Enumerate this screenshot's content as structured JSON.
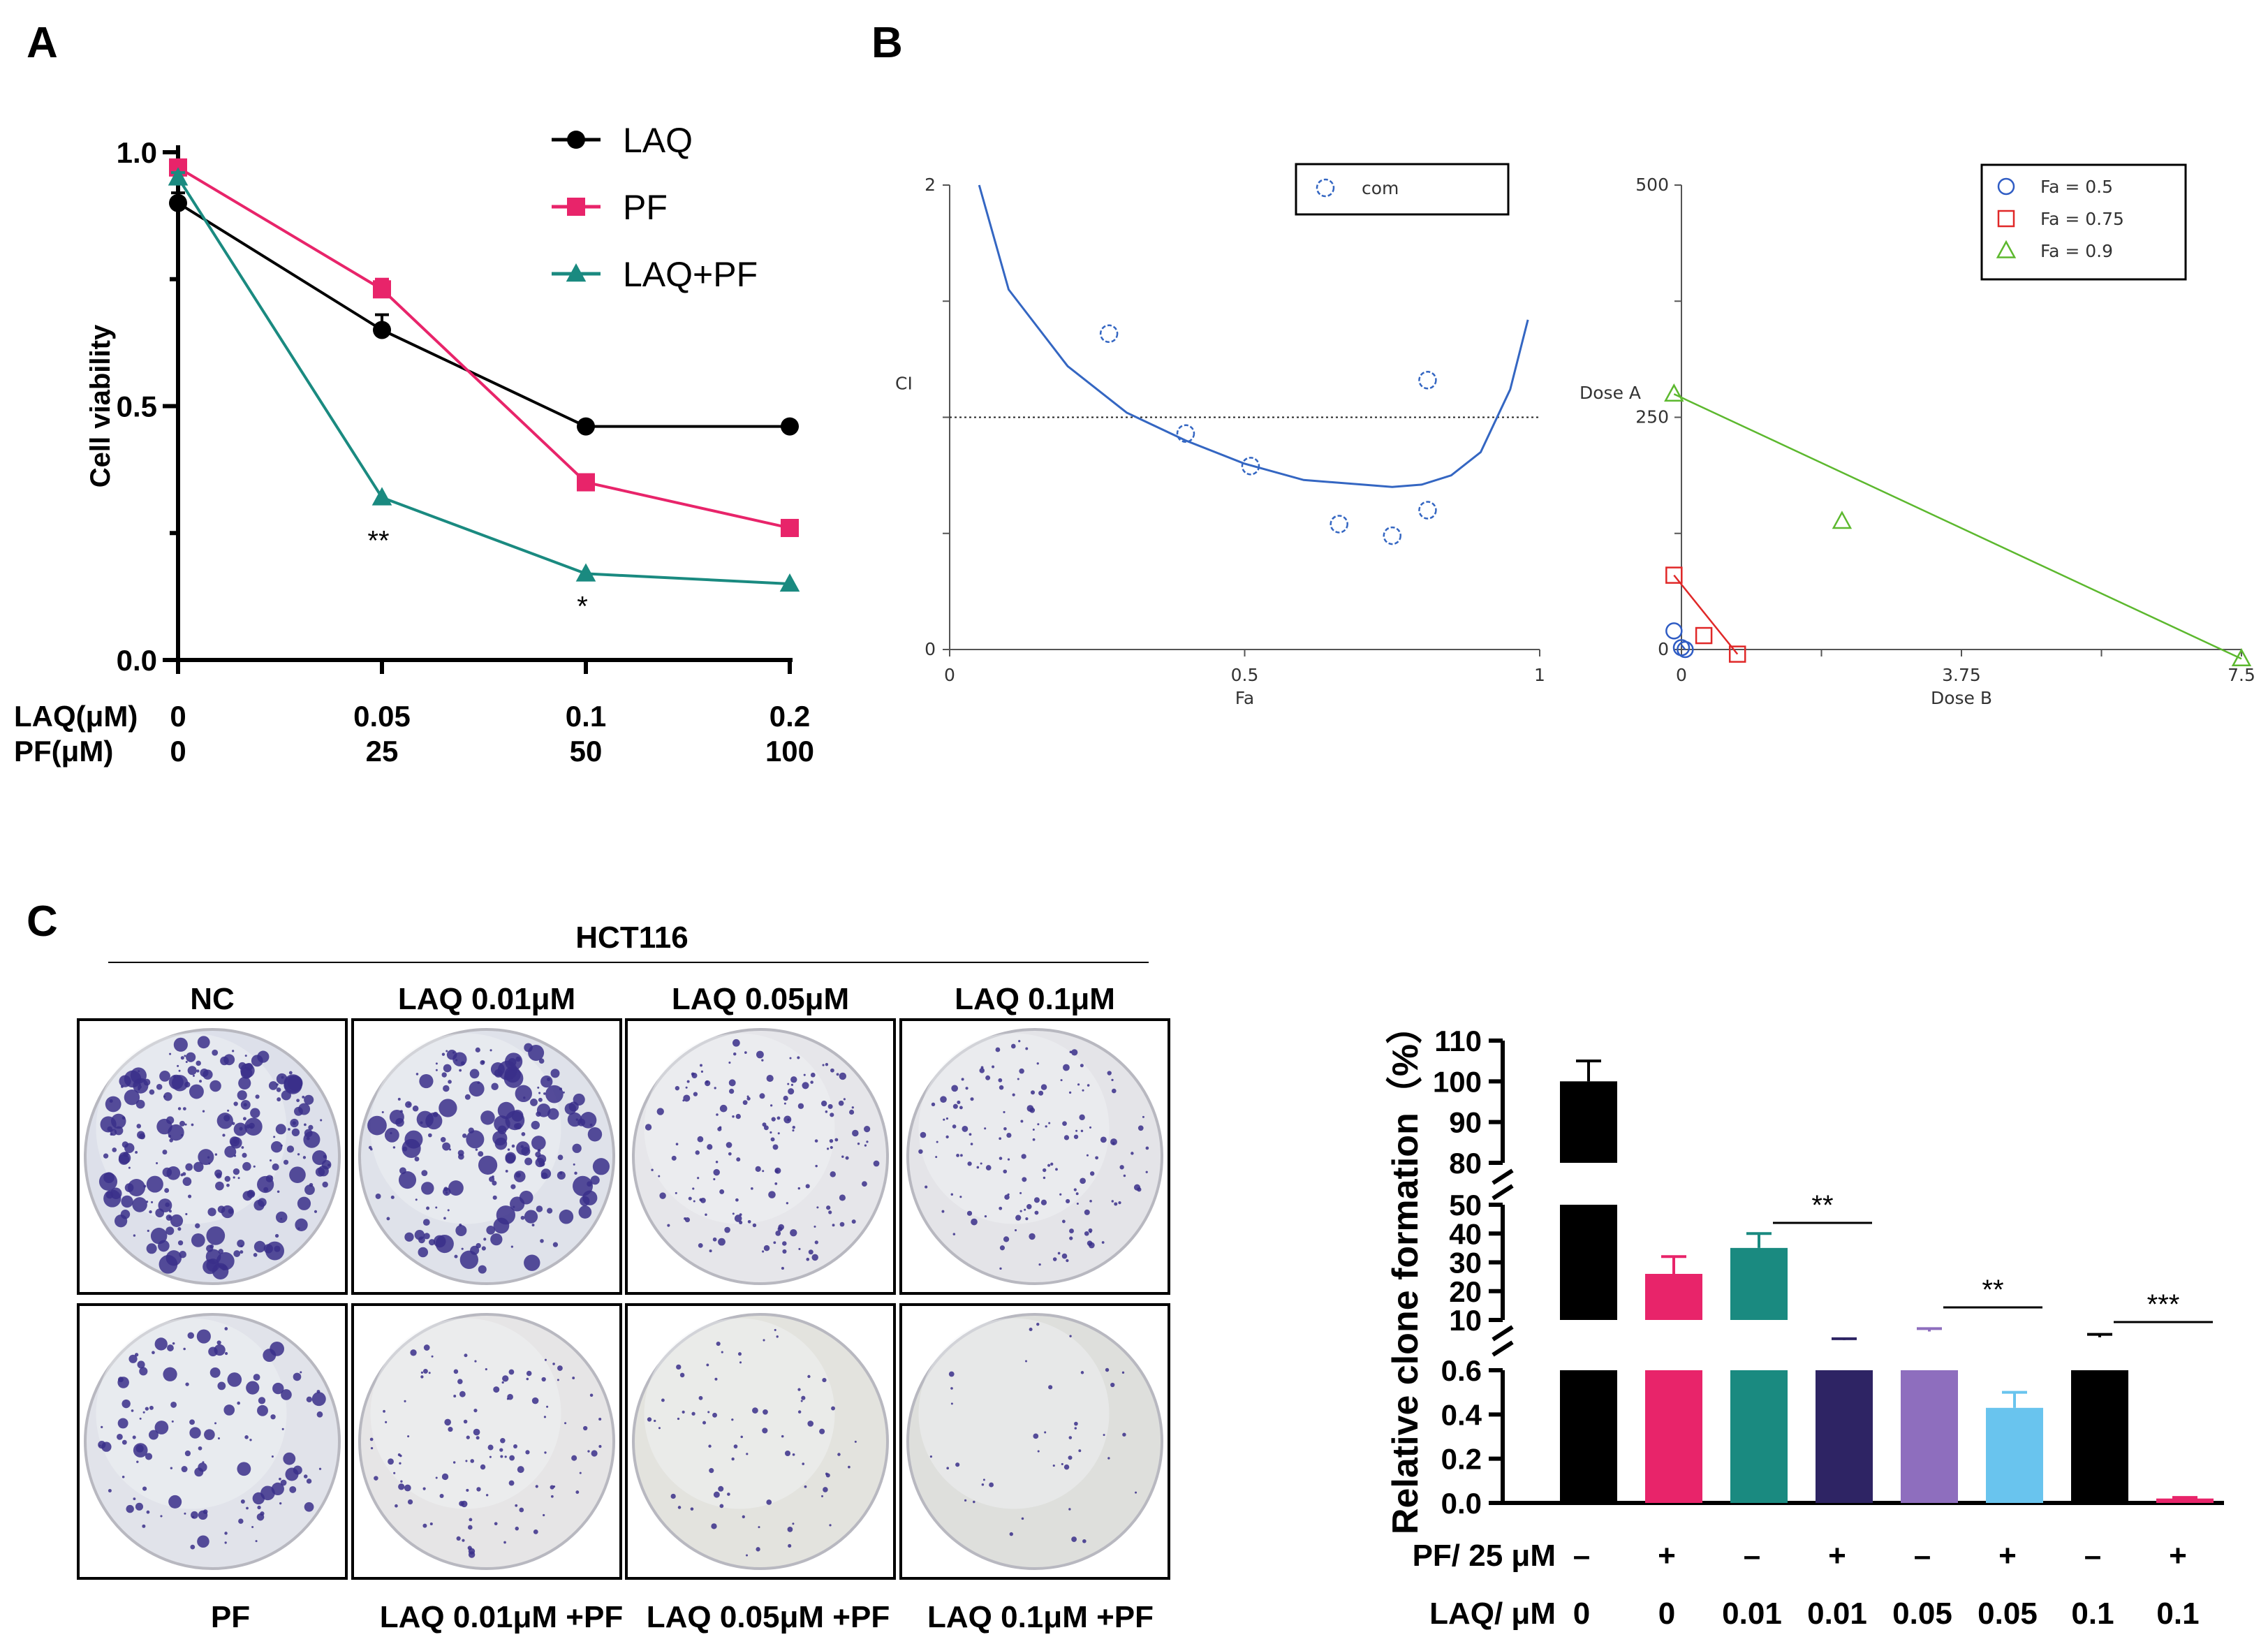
{
  "figure": {
    "panel_labels": {
      "a": "A",
      "b": "B",
      "c": "C"
    }
  },
  "chart_data": [
    {
      "id": "A",
      "type": "line",
      "ylabel": "Cell viability",
      "ylim": [
        0,
        1.0
      ],
      "y_ticks": [
        "0.0",
        "0.5",
        "1.0"
      ],
      "x_positions": [
        0,
        1,
        2,
        3
      ],
      "row_labels": [
        {
          "label": "LAQ(μM)",
          "values": [
            "0",
            "0.05",
            "0.1",
            "0.2"
          ]
        },
        {
          "label": "PF(μM)",
          "values": [
            "0",
            "25",
            "50",
            "100"
          ]
        }
      ],
      "series": [
        {
          "name": "LAQ",
          "color": "#000000",
          "marker": "circle",
          "values": [
            0.9,
            0.65,
            0.46,
            0.46
          ],
          "errors": [
            0.02,
            0.03,
            0,
            0
          ]
        },
        {
          "name": "PF",
          "color": "#e8246a",
          "marker": "square",
          "values": [
            0.97,
            0.73,
            0.35,
            0.26
          ],
          "errors": [
            0.01,
            0.02,
            0,
            0
          ]
        },
        {
          "name": "LAQ+PF",
          "color": "#1a8a80",
          "marker": "triangle",
          "values": [
            0.95,
            0.32,
            0.17,
            0.15
          ],
          "errors": [
            0.01,
            0,
            0,
            0
          ]
        }
      ],
      "annotations": [
        {
          "x": 1,
          "text": "**"
        },
        {
          "x": 2,
          "text": "*"
        }
      ]
    },
    {
      "id": "B-left",
      "type": "scatter",
      "xlabel": "Fa",
      "ylabel": "CI",
      "xlim": [
        0,
        1
      ],
      "ylim": [
        0,
        2
      ],
      "x_ticks": [
        "0",
        "0.5",
        "1"
      ],
      "y_ticks": [
        "0",
        "2"
      ],
      "legend": [
        "com"
      ],
      "reference_line": 1.0,
      "points": [
        [
          0.27,
          1.36
        ],
        [
          0.4,
          0.93
        ],
        [
          0.51,
          0.79
        ],
        [
          0.66,
          0.54
        ],
        [
          0.75,
          0.49
        ],
        [
          0.81,
          0.6
        ],
        [
          0.81,
          1.16
        ]
      ],
      "fit_curve": [
        [
          0.05,
          2.0
        ],
        [
          0.1,
          1.55
        ],
        [
          0.2,
          1.22
        ],
        [
          0.3,
          1.02
        ],
        [
          0.4,
          0.9
        ],
        [
          0.5,
          0.8
        ],
        [
          0.6,
          0.73
        ],
        [
          0.7,
          0.71
        ],
        [
          0.75,
          0.7
        ],
        [
          0.8,
          0.71
        ],
        [
          0.85,
          0.75
        ],
        [
          0.9,
          0.85
        ],
        [
          0.95,
          1.12
        ],
        [
          0.98,
          1.42
        ]
      ]
    },
    {
      "id": "B-right",
      "type": "scatter",
      "xlabel": "Dose B",
      "ylabel": "Dose A",
      "xlim": [
        0,
        7.5
      ],
      "ylim": [
        0,
        500
      ],
      "x_ticks": [
        "0",
        "3.75",
        "7.5"
      ],
      "y_ticks": [
        "0",
        "250",
        "500"
      ],
      "series": [
        {
          "name": "Fa = 0.5",
          "color": "#2f5cc4",
          "marker": "circle",
          "points": [
            [
              -0.1,
              20
            ],
            [
              0,
              2
            ],
            [
              0.05,
              0
            ]
          ],
          "line": [
            [
              0,
              5
            ],
            [
              0.05,
              0
            ]
          ]
        },
        {
          "name": "Fa = 0.75",
          "color": "#e02828",
          "marker": "square",
          "points": [
            [
              -0.1,
              80
            ],
            [
              0.3,
              15
            ],
            [
              0.75,
              -5
            ]
          ],
          "line": [
            [
              -0.1,
              80
            ],
            [
              0.75,
              -5
            ]
          ]
        },
        {
          "name": "Fa = 0.9",
          "color": "#5cb82e",
          "marker": "triangle",
          "points": [
            [
              -0.1,
              275
            ],
            [
              2.15,
              138
            ],
            [
              7.5,
              -10
            ]
          ],
          "line": [
            [
              -0.1,
              275
            ],
            [
              7.5,
              -10
            ]
          ]
        }
      ]
    },
    {
      "id": "C-bar",
      "type": "bar",
      "ylabel": "Relative clone formation（%）",
      "axis_segments": [
        {
          "range": [
            80,
            110
          ],
          "ticks": [
            "80",
            "90",
            "100",
            "110"
          ]
        },
        {
          "range": [
            10,
            50
          ],
          "ticks": [
            "10",
            "20",
            "30",
            "40",
            "50"
          ]
        },
        {
          "range": [
            0,
            0.6
          ],
          "ticks": [
            "0.0",
            "0.2",
            "0.4",
            "0.6"
          ]
        }
      ],
      "values": [
        100,
        26,
        35,
        3,
        6,
        0.43,
        4,
        0.02
      ],
      "errors": [
        5,
        6,
        5,
        0.5,
        1,
        0.07,
        1,
        0.005
      ],
      "colors": [
        "#000000",
        "#e8246a",
        "#1a8a80",
        "#2e2464",
        "#8e6ebe",
        "#69c4ee",
        "#000000",
        "#e8246a"
      ],
      "row_labels": [
        {
          "label": "PF/ 25 μM",
          "values": [
            "–",
            "+",
            "–",
            "+",
            "–",
            "+",
            "–",
            "+"
          ]
        },
        {
          "label": "LAQ/ μM",
          "values": [
            "0",
            "0",
            "0.01",
            "0.01",
            "0.05",
            "0.05",
            "0.1",
            "0.1"
          ]
        }
      ],
      "significance": [
        {
          "from": 2,
          "to": 3,
          "text": "**"
        },
        {
          "from": 4,
          "to": 5,
          "text": "**"
        },
        {
          "from": 6,
          "to": 7,
          "text": "***"
        }
      ]
    }
  ],
  "colony_panel": {
    "cell_line": "HCT116",
    "top_labels": [
      "NC",
      "LAQ 0.01μM",
      "LAQ 0.05μM",
      "LAQ 0.1μM"
    ],
    "bottom_labels": [
      "PF",
      "LAQ 0.01μM +PF",
      "LAQ 0.05μM +PF",
      "LAQ 0.1μM +PF"
    ],
    "colony_color": "#3a2f8a"
  }
}
